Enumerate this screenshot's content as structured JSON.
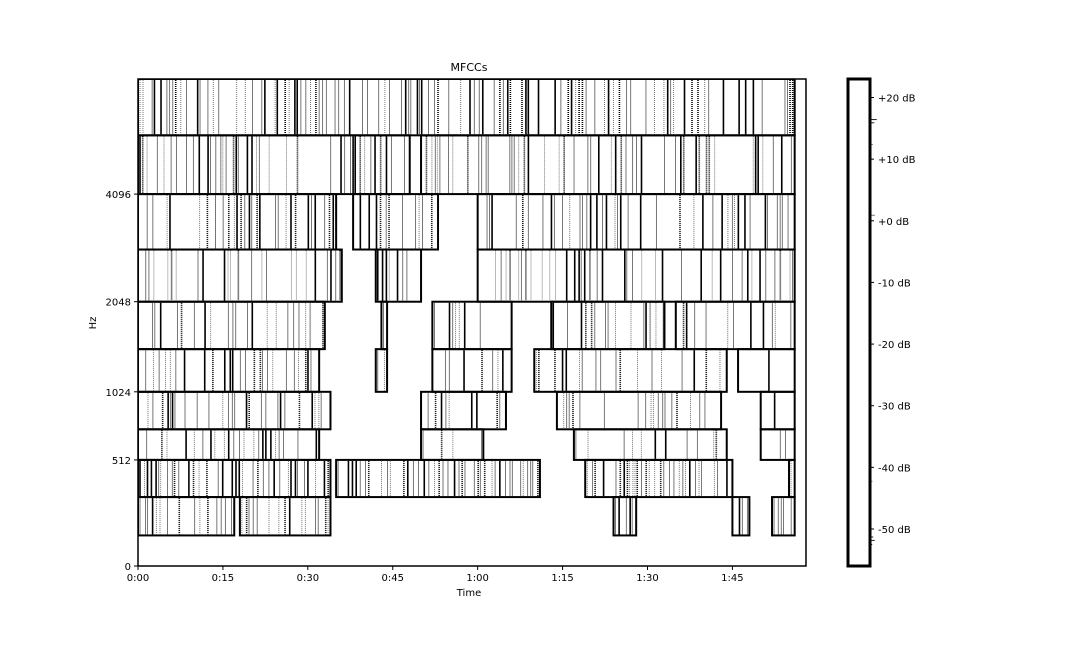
{
  "chart_data": {
    "type": "heatmap",
    "title": "MFCCs",
    "xlabel": "Time",
    "ylabel": "Hz",
    "x_ticks": [
      "0:00",
      "0:15",
      "0:30",
      "0:45",
      "1:00",
      "1:15",
      "1:30",
      "1:45"
    ],
    "x_tick_seconds": [
      0,
      15,
      30,
      45,
      60,
      75,
      90,
      105
    ],
    "xlim_seconds": [
      0,
      118
    ],
    "y_ticks": [
      "0",
      "512",
      "1024",
      "2048",
      "4096"
    ],
    "y_tick_values": [
      0,
      512,
      1024,
      2048,
      4096
    ],
    "y_scale": "mel",
    "colorbar": {
      "ticks": [
        "+20 dB",
        "+10 dB",
        "+0 dB",
        "-10 dB",
        "-20 dB",
        "-30 dB",
        "-40 dB",
        "-50 dB"
      ],
      "values": [
        20,
        10,
        0,
        -10,
        -20,
        -30,
        -40,
        -50
      ],
      "range": [
        -56,
        23
      ]
    },
    "bands": [
      {
        "lo": 5800,
        "hi": 8000,
        "level": 0.55,
        "active": [
          [
            0,
            116
          ]
        ]
      },
      {
        "lo": 4096,
        "hi": 5800,
        "level": 0.55,
        "active": [
          [
            0,
            48
          ],
          [
            50,
            116
          ]
        ]
      },
      {
        "lo": 2900,
        "hi": 4096,
        "level": 0.5,
        "active": [
          [
            0,
            35
          ],
          [
            38,
            53
          ],
          [
            60,
            116
          ]
        ]
      },
      {
        "lo": 2048,
        "hi": 2900,
        "level": 0.5,
        "active": [
          [
            0,
            36
          ],
          [
            42,
            50
          ],
          [
            60,
            116
          ]
        ]
      },
      {
        "lo": 1450,
        "hi": 2048,
        "level": 0.45,
        "active": [
          [
            0,
            33
          ],
          [
            43,
            44
          ],
          [
            52,
            66
          ],
          [
            73,
            93
          ],
          [
            95,
            116
          ]
        ]
      },
      {
        "lo": 1024,
        "hi": 1450,
        "level": 0.45,
        "active": [
          [
            0,
            32
          ],
          [
            42,
            44
          ],
          [
            52,
            66
          ],
          [
            70,
            104
          ],
          [
            106,
            116
          ]
        ]
      },
      {
        "lo": 720,
        "hi": 1024,
        "level": 0.4,
        "active": [
          [
            0,
            34
          ],
          [
            50,
            65
          ],
          [
            74,
            103
          ],
          [
            110,
            116
          ]
        ]
      },
      {
        "lo": 512,
        "hi": 720,
        "level": 0.4,
        "active": [
          [
            0,
            32
          ],
          [
            50,
            61
          ],
          [
            77,
            104
          ],
          [
            110,
            116
          ]
        ]
      },
      {
        "lo": 300,
        "hi": 512,
        "level": 0.8,
        "active": [
          [
            0,
            34
          ],
          [
            35,
            71
          ],
          [
            79,
            105
          ],
          [
            115,
            116
          ]
        ]
      },
      {
        "lo": 120,
        "hi": 300,
        "level": 0.65,
        "active": [
          [
            0,
            17
          ],
          [
            18,
            34
          ],
          [
            84,
            88
          ],
          [
            105,
            108
          ],
          [
            112,
            116
          ]
        ]
      }
    ]
  }
}
